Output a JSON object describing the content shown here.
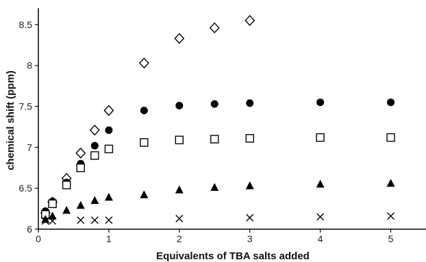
{
  "chart_data": {
    "type": "scatter",
    "title": "",
    "xlabel": "Equivalents of  TBA salts added",
    "ylabel": "chemical shift (ppm)",
    "xlim": [
      0,
      5.5
    ],
    "ylim": [
      6,
      8.7
    ],
    "x_ticks": [
      0,
      1,
      2,
      3,
      4,
      5
    ],
    "y_ticks": [
      6,
      6.5,
      7,
      7.5,
      8,
      8.5
    ],
    "grid": false,
    "legend": "none",
    "series": [
      {
        "marker": "open-diamond",
        "points": [
          [
            0.1,
            6.2
          ],
          [
            0.2,
            6.33
          ],
          [
            0.4,
            6.62
          ],
          [
            0.6,
            6.93
          ],
          [
            0.8,
            7.21
          ],
          [
            1.0,
            7.45
          ],
          [
            1.5,
            8.03
          ],
          [
            2.0,
            8.33
          ],
          [
            2.5,
            8.46
          ],
          [
            3.0,
            8.55
          ]
        ]
      },
      {
        "marker": "filled-circle",
        "points": [
          [
            0.1,
            6.22
          ],
          [
            0.2,
            6.34
          ],
          [
            0.4,
            6.57
          ],
          [
            0.6,
            6.8
          ],
          [
            0.8,
            7.02
          ],
          [
            1.0,
            7.21
          ],
          [
            1.5,
            7.45
          ],
          [
            2.0,
            7.51
          ],
          [
            2.5,
            7.53
          ],
          [
            3.0,
            7.54
          ],
          [
            4.0,
            7.55
          ],
          [
            5.0,
            7.55
          ]
        ]
      },
      {
        "marker": "open-square",
        "points": [
          [
            0.1,
            6.18
          ],
          [
            0.2,
            6.31
          ],
          [
            0.4,
            6.54
          ],
          [
            0.6,
            6.75
          ],
          [
            0.8,
            6.9
          ],
          [
            1.0,
            6.98
          ],
          [
            1.5,
            7.06
          ],
          [
            2.0,
            7.09
          ],
          [
            2.5,
            7.1
          ],
          [
            3.0,
            7.11
          ],
          [
            4.0,
            7.12
          ],
          [
            5.0,
            7.12
          ]
        ]
      },
      {
        "marker": "filled-triangle",
        "points": [
          [
            0.1,
            6.12
          ],
          [
            0.2,
            6.16
          ],
          [
            0.4,
            6.23
          ],
          [
            0.6,
            6.29
          ],
          [
            0.8,
            6.35
          ],
          [
            1.0,
            6.39
          ],
          [
            1.5,
            6.42
          ],
          [
            2.0,
            6.48
          ],
          [
            2.5,
            6.51
          ],
          [
            3.0,
            6.53
          ],
          [
            4.0,
            6.55
          ],
          [
            5.0,
            6.56
          ]
        ]
      },
      {
        "marker": "cross",
        "points": [
          [
            0.1,
            6.1
          ],
          [
            0.2,
            6.1
          ],
          [
            0.6,
            6.11
          ],
          [
            0.8,
            6.11
          ],
          [
            1.0,
            6.11
          ],
          [
            2.0,
            6.13
          ],
          [
            3.0,
            6.14
          ],
          [
            4.0,
            6.15
          ],
          [
            5.0,
            6.16
          ]
        ]
      }
    ],
    "colors": {
      "marker": "#000000",
      "axis": "#000000"
    }
  }
}
